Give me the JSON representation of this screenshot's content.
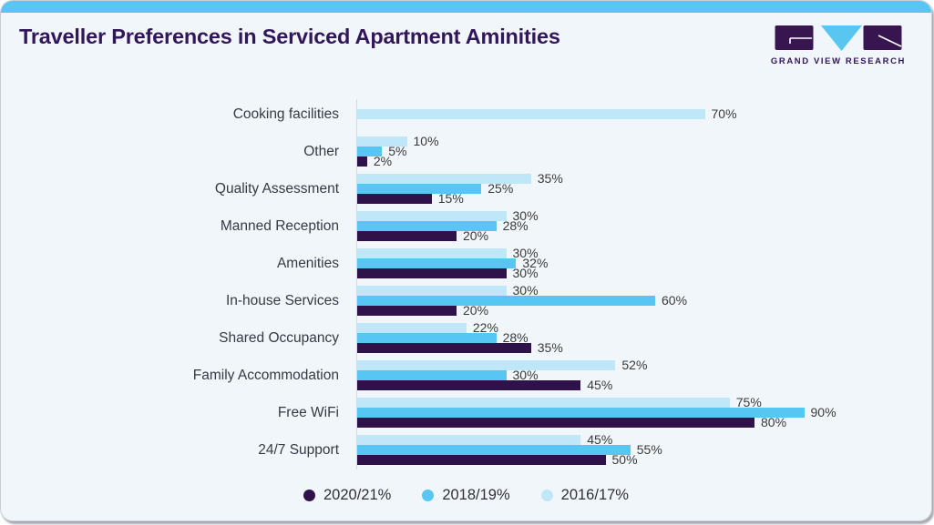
{
  "header": {
    "title": "Traveller Preferences in Serviced Apartment Aminities",
    "logo_text": "GRAND VIEW RESEARCH"
  },
  "chart_data": {
    "type": "bar",
    "orientation": "horizontal",
    "title": "Traveller Preferences in Serviced Apartment Aminities",
    "categories": [
      "Cooking facilities",
      "Other",
      "Quality Assessment",
      "Manned Reception",
      "Amenities",
      "In-house Services",
      "Shared Occupancy",
      "Family Accommodation",
      "Free WiFi",
      "24/7 Support"
    ],
    "series": [
      {
        "name": "2020/21%",
        "color": "#30124a",
        "values": [
          null,
          2,
          15,
          20,
          30,
          20,
          35,
          45,
          80,
          50
        ]
      },
      {
        "name": "2018/19%",
        "color": "#57c6f2",
        "values": [
          null,
          5,
          25,
          28,
          32,
          60,
          28,
          30,
          90,
          55
        ]
      },
      {
        "name": "2016/17%",
        "color": "#bfe7f8",
        "values": [
          70,
          10,
          35,
          30,
          30,
          30,
          22,
          52,
          75,
          45
        ]
      }
    ],
    "value_suffix": "%",
    "xlim": [
      0,
      100
    ],
    "grid": false,
    "legend_position": "bottom",
    "bar_display_order_top_to_bottom": [
      "2016/17%",
      "2018/19%",
      "2020/21%"
    ]
  },
  "colors": {
    "accent_strip": "#58c6f0",
    "title_text": "#31175a",
    "card_background": "#f1f6fa",
    "axis_line": "#d5dade",
    "category_label": "#343b46",
    "value_label": "#3a3a3a",
    "logo_dark": "#371650",
    "logo_blue": "#58c6f0"
  }
}
